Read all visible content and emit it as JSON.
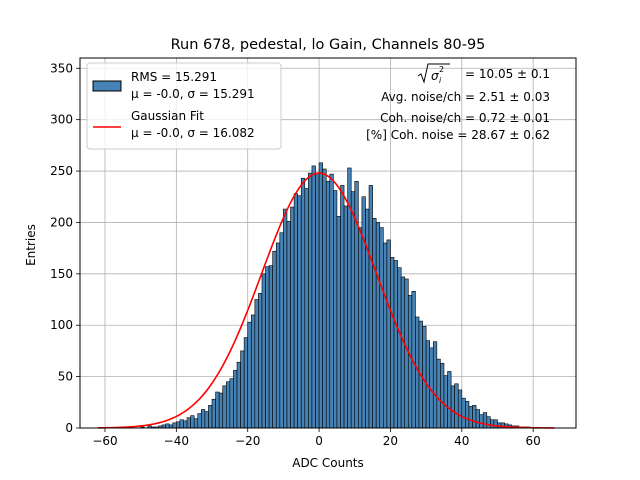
{
  "chart_data": {
    "type": "bar",
    "title": "Run 678, pedestal, lo Gain, Channels 80-95",
    "xlabel": "ADC Counts",
    "ylabel": "Entries",
    "xlim": [
      -67,
      72
    ],
    "ylim": [
      0,
      360
    ],
    "xticks": [
      -60,
      -40,
      -20,
      0,
      20,
      40,
      60
    ],
    "yticks": [
      0,
      50,
      100,
      150,
      200,
      250,
      300,
      350
    ],
    "grid": true,
    "legend_position": "top-left",
    "histogram": {
      "name": "RMS = 15.291",
      "stats": "μ = -0.0, σ = 15.291",
      "color": "#4682b4",
      "edge_color": "#000000",
      "bin_start": -62,
      "bin_width": 1,
      "counts": [
        0,
        0,
        0,
        0,
        0,
        0,
        0,
        0,
        0,
        0,
        0,
        0,
        1,
        0,
        2,
        1,
        1,
        2,
        3,
        4,
        3,
        5,
        6,
        8,
        7,
        10,
        12,
        9,
        14,
        18,
        16,
        22,
        28,
        35,
        34,
        41,
        45,
        48,
        56,
        64,
        75,
        88,
        103,
        110,
        125,
        131,
        150,
        157,
        158,
        172,
        180,
        190,
        213,
        201,
        215,
        228,
        226,
        243,
        233,
        248,
        255,
        248,
        258,
        252,
        240,
        247,
        231,
        206,
        236,
        216,
        253,
        230,
        240,
        195,
        225,
        213,
        236,
        204,
        200,
        195,
        180,
        183,
        166,
        163,
        156,
        147,
        145,
        129,
        133,
        108,
        104,
        99,
        85,
        78,
        84,
        67,
        63,
        51,
        55,
        41,
        43,
        37,
        29,
        26,
        21,
        22,
        18,
        13,
        15,
        11,
        8,
        8,
        5,
        5,
        4,
        3,
        2,
        2,
        1,
        1,
        1,
        0,
        0,
        0,
        0,
        0,
        0,
        0
      ]
    },
    "series": [
      {
        "name": "Gaussian Fit",
        "stats": "μ = -0.0, σ = 16.082",
        "color": "#ff0000",
        "type": "line",
        "mu": 0.0,
        "sigma": 16.082,
        "amplitude": 248,
        "x_range": [
          -62,
          66
        ]
      }
    ],
    "annotations": [
      {
        "label": "sqrt-sigma",
        "text": "= 10.05 ± 0.1"
      },
      {
        "label": "avg-noise",
        "text": "Avg. noise/ch = 2.51 ± 0.03"
      },
      {
        "label": "coh-noise",
        "text": "Coh. noise/ch = 0.72 ± 0.01"
      },
      {
        "label": "coh-noise-pct",
        "text": "[%] Coh. noise = 28.67 ± 0.62"
      }
    ]
  }
}
